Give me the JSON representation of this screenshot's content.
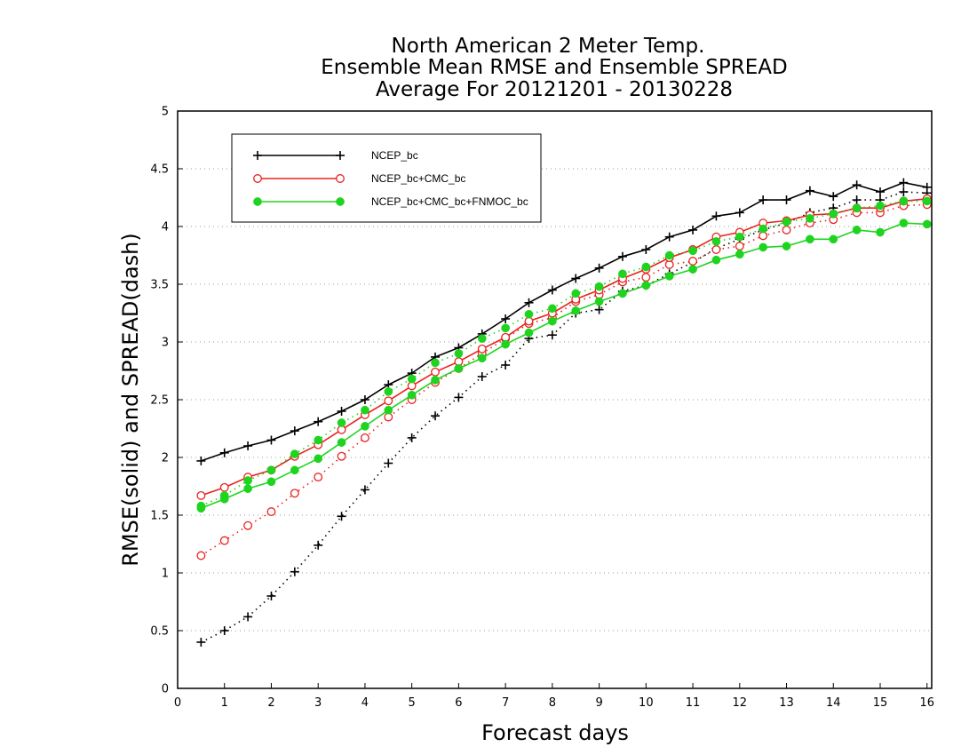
{
  "chart_data": {
    "type": "line",
    "title": [
      "North American 2 Meter Temp.",
      "Ensemble Mean RMSE and Ensemble SPREAD",
      "Average For 20121201 - 20130228"
    ],
    "xlabel": "Forecast days",
    "ylabel": "RMSE(solid) and SPREAD(dash)",
    "xlim": [
      0,
      16.1
    ],
    "ylim": [
      0,
      5
    ],
    "xticks": [
      0,
      1,
      2,
      3,
      4,
      5,
      6,
      7,
      8,
      9,
      10,
      11,
      12,
      13,
      14,
      15,
      16
    ],
    "yticks": [
      0,
      0.5,
      1,
      1.5,
      2,
      2.5,
      3,
      3.5,
      4,
      4.5,
      5
    ],
    "grid": true,
    "legend_position": "top-left",
    "x": [
      0.5,
      1,
      1.5,
      2,
      2.5,
      3,
      3.5,
      4,
      4.5,
      5,
      5.5,
      6,
      6.5,
      7,
      7.5,
      8,
      8.5,
      9,
      9.5,
      10,
      10.5,
      11,
      11.5,
      12,
      12.5,
      13,
      13.5,
      14,
      14.5,
      15,
      15.5,
      16
    ],
    "series": [
      {
        "name": "NCEP_bc",
        "color": "#000000",
        "marker": "plus",
        "rmse": [
          1.97,
          2.04,
          2.1,
          2.15,
          2.23,
          2.31,
          2.4,
          2.5,
          2.63,
          2.73,
          2.87,
          2.95,
          3.07,
          3.2,
          3.34,
          3.45,
          3.55,
          3.64,
          3.74,
          3.8,
          3.91,
          3.97,
          4.09,
          4.12,
          4.23,
          4.23,
          4.31,
          4.26,
          4.36,
          4.3,
          4.38,
          4.34
        ],
        "spread": [
          0.4,
          0.5,
          0.62,
          0.8,
          1.01,
          1.24,
          1.49,
          1.72,
          1.95,
          2.17,
          2.36,
          2.52,
          2.7,
          2.8,
          3.03,
          3.06,
          3.25,
          3.28,
          3.44,
          3.49,
          3.59,
          3.69,
          3.81,
          3.89,
          3.97,
          4.03,
          4.12,
          4.16,
          4.23,
          4.23,
          4.3,
          4.29
        ]
      },
      {
        "name": "NCEP_bc+CMC_bc",
        "color": "#e8231f",
        "marker": "open-circle",
        "rmse": [
          1.67,
          1.74,
          1.83,
          1.89,
          2.01,
          2.11,
          2.24,
          2.37,
          2.49,
          2.62,
          2.74,
          2.83,
          2.94,
          3.04,
          3.18,
          3.25,
          3.37,
          3.45,
          3.55,
          3.63,
          3.73,
          3.8,
          3.91,
          3.95,
          4.03,
          4.05,
          4.1,
          4.11,
          4.16,
          4.16,
          4.22,
          4.24
        ],
        "spread": [
          1.15,
          1.28,
          1.41,
          1.53,
          1.69,
          1.83,
          2.01,
          2.17,
          2.35,
          2.5,
          2.65,
          2.77,
          2.9,
          3.03,
          3.16,
          3.21,
          3.35,
          3.41,
          3.52,
          3.56,
          3.67,
          3.7,
          3.8,
          3.83,
          3.92,
          3.97,
          4.03,
          4.06,
          4.12,
          4.12,
          4.18,
          4.19
        ]
      },
      {
        "name": "NCEP_bc+CMC_bc+FNMOC_bc",
        "color": "#1ed41e",
        "marker": "filled-circle",
        "rmse": [
          1.56,
          1.64,
          1.73,
          1.79,
          1.89,
          1.99,
          2.13,
          2.27,
          2.41,
          2.54,
          2.67,
          2.77,
          2.86,
          2.98,
          3.08,
          3.18,
          3.27,
          3.35,
          3.42,
          3.49,
          3.57,
          3.63,
          3.71,
          3.76,
          3.82,
          3.83,
          3.89,
          3.89,
          3.97,
          3.95,
          4.03,
          4.02
        ],
        "spread": [
          1.58,
          1.67,
          1.8,
          1.89,
          2.03,
          2.15,
          2.3,
          2.41,
          2.57,
          2.68,
          2.82,
          2.9,
          3.03,
          3.12,
          3.24,
          3.29,
          3.42,
          3.48,
          3.59,
          3.65,
          3.75,
          3.79,
          3.87,
          3.91,
          3.98,
          4.04,
          4.07,
          4.11,
          4.16,
          4.18,
          4.22,
          4.22
        ]
      }
    ]
  }
}
